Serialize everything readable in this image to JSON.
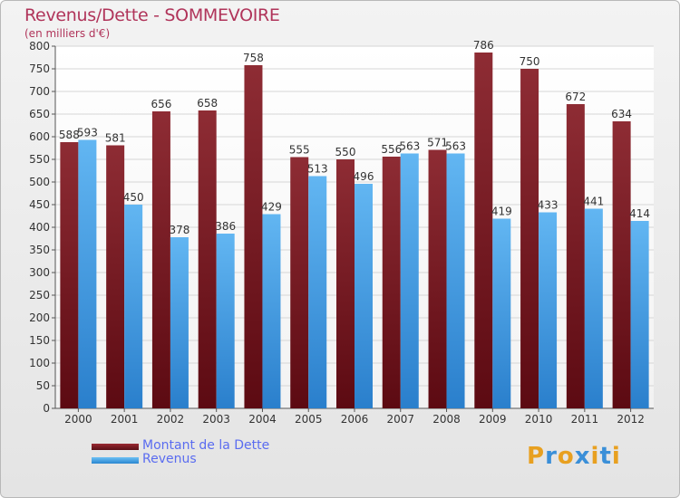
{
  "title": "Revenus/Dette - SOMMEVOIRE",
  "subtitle": "(en milliers d'€)",
  "colors": {
    "dette": "#7a1a22",
    "revenus": "#3fa0e6",
    "title": "#b0345a",
    "legend_text": "#5a6cf0"
  },
  "chart_data": {
    "type": "bar",
    "title": "Revenus/Dette - SOMMEVOIRE",
    "ylabel": "(en milliers d'€)",
    "categories": [
      "2000",
      "2001",
      "2002",
      "2003",
      "2004",
      "2005",
      "2006",
      "2007",
      "2008",
      "2009",
      "2010",
      "2011",
      "2012"
    ],
    "series": [
      {
        "name": "Montant de la Dette",
        "values": [
          588,
          581,
          656,
          658,
          758,
          555,
          550,
          556,
          571,
          786,
          750,
          672,
          634
        ]
      },
      {
        "name": "Revenus",
        "values": [
          593,
          450,
          378,
          386,
          429,
          513,
          496,
          563,
          563,
          419,
          433,
          441,
          414
        ]
      }
    ],
    "ylim": [
      0,
      800
    ],
    "yticks": [
      0,
      50,
      100,
      150,
      200,
      250,
      300,
      350,
      400,
      450,
      500,
      550,
      600,
      650,
      700,
      750,
      800
    ],
    "grid": true,
    "legend_position": "bottom-left"
  },
  "legend": {
    "items": [
      {
        "label": "Montant de la Dette"
      },
      {
        "label": "Revenus"
      }
    ]
  },
  "logo": {
    "text": "Proxiti",
    "letters": [
      "P",
      "r",
      "o",
      "x",
      "i",
      "t",
      "i"
    ],
    "letter_colors": [
      "#e8a020",
      "#3a8fd8",
      "#e8a020",
      "#3a8fd8",
      "#e8a020",
      "#3a8fd8",
      "#e8a020"
    ]
  }
}
